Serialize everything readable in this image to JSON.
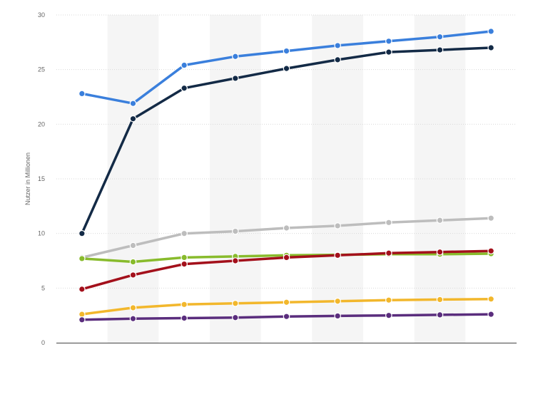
{
  "chart_data": {
    "type": "line",
    "ylabel": "Nutzer in Millionen",
    "ylim": [
      0,
      30
    ],
    "yticks": [
      0,
      5,
      10,
      15,
      20,
      25,
      30
    ],
    "grid": true,
    "legend": "none",
    "x": [
      1,
      2,
      3,
      4,
      5,
      6,
      7,
      8,
      9
    ],
    "series": [
      {
        "color": "#3a7fdc",
        "values": [
          22.8,
          21.9,
          25.4,
          26.2,
          26.7,
          27.2,
          27.6,
          28.0,
          28.5
        ]
      },
      {
        "color": "#132a46",
        "values": [
          10.0,
          20.5,
          23.3,
          24.2,
          25.1,
          25.9,
          26.6,
          26.8,
          27.0
        ]
      },
      {
        "color": "#bdbdbd",
        "values": [
          7.8,
          8.9,
          10.0,
          10.2,
          10.5,
          10.7,
          11.0,
          11.2,
          11.4
        ]
      },
      {
        "color": "#88bb2c",
        "values": [
          7.7,
          7.4,
          7.8,
          7.9,
          8.0,
          8.05,
          8.1,
          8.1,
          8.15
        ]
      },
      {
        "color": "#a3101b",
        "values": [
          4.9,
          6.2,
          7.2,
          7.5,
          7.8,
          8.0,
          8.2,
          8.3,
          8.4
        ]
      },
      {
        "color": "#f2b72c",
        "values": [
          2.6,
          3.2,
          3.5,
          3.6,
          3.7,
          3.8,
          3.9,
          3.95,
          4.0
        ]
      },
      {
        "color": "#5a2d7d",
        "values": [
          2.1,
          2.2,
          2.25,
          2.3,
          2.4,
          2.45,
          2.5,
          2.55,
          2.6
        ]
      }
    ]
  }
}
